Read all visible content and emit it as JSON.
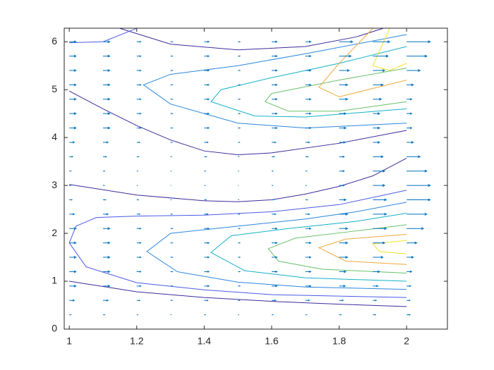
{
  "chart_data": {
    "type": "contour",
    "xlim": [
      0.985,
      2.121
    ],
    "ylim": [
      0,
      6.2832
    ],
    "xticks": [
      1,
      1.2,
      1.4,
      1.6,
      1.8,
      2
    ],
    "yticks": [
      0,
      1,
      2,
      3,
      4,
      5,
      6
    ],
    "contours": [
      {
        "color": "#3d2a9a",
        "x": [
          1,
          1.2,
          1.4,
          1.6,
          1.8,
          2
        ],
        "y": [
          1.0,
          0.78,
          0.66,
          0.58,
          0.52,
          0.47
        ]
      },
      {
        "color": "#3d2a9a",
        "x": [
          1,
          1.2,
          1.4,
          1.5,
          1.6,
          1.7,
          1.8,
          1.9,
          2
        ],
        "y": [
          3.02,
          2.8,
          2.68,
          2.66,
          2.7,
          2.82,
          2.98,
          3.2,
          3.57
        ]
      },
      {
        "color": "#3d2a9a",
        "x": [
          1,
          1.1,
          1.2,
          1.3,
          1.4,
          1.5,
          1.6,
          1.8,
          2
        ],
        "y": [
          4.97,
          4.6,
          4.25,
          3.95,
          3.72,
          3.64,
          3.68,
          3.88,
          4.15
        ]
      },
      {
        "color": "#3d2a9a",
        "x": [
          1.15,
          1.3,
          1.5,
          1.7,
          1.85,
          1.93
        ],
        "y": [
          6.28,
          5.95,
          5.83,
          5.9,
          6.1,
          6.28
        ]
      },
      {
        "color": "#4a5ae6",
        "x": [
          2,
          1.6,
          1.4,
          1.2,
          1.05,
          1,
          1.02,
          1.08,
          1.2,
          1.4,
          1.6,
          1.8,
          2
        ],
        "y": [
          0.66,
          0.72,
          0.82,
          0.97,
          1.3,
          1.8,
          2.15,
          2.33,
          2.36,
          2.38,
          2.45,
          2.6,
          2.9
        ]
      },
      {
        "color": "#4a5ae6",
        "x": [
          1,
          1.1,
          1.2
        ],
        "y": [
          5.98,
          6.0,
          6.28
        ]
      },
      {
        "color": "#2b86dc",
        "x": [
          2,
          1.7,
          1.5,
          1.32,
          1.23,
          1.3,
          1.5,
          1.7,
          1.85,
          2
        ],
        "y": [
          0.83,
          0.88,
          0.98,
          1.2,
          1.62,
          2.0,
          2.15,
          2.3,
          2.45,
          2.65
        ]
      },
      {
        "color": "#2b86dc",
        "x": [
          2,
          1.7,
          1.5,
          1.3,
          1.22,
          1.3,
          1.5,
          1.7,
          2
        ],
        "y": [
          6.15,
          5.75,
          5.5,
          5.32,
          5.1,
          4.7,
          4.3,
          4.2,
          4.3
        ]
      },
      {
        "color": "#14b0c8",
        "x": [
          2,
          1.7,
          1.52,
          1.42,
          1.48,
          1.65,
          1.85,
          2
        ],
        "y": [
          1.0,
          1.07,
          1.22,
          1.6,
          1.95,
          2.1,
          2.25,
          2.42
        ]
      },
      {
        "color": "#14b0c8",
        "x": [
          2,
          1.8,
          1.6,
          1.45,
          1.42,
          1.55,
          1.7,
          2
        ],
        "y": [
          5.9,
          5.55,
          5.25,
          5.0,
          4.75,
          4.45,
          4.43,
          4.6
        ]
      },
      {
        "color": "#68c06a",
        "x": [
          2,
          1.75,
          1.62,
          1.59,
          1.67,
          1.85,
          2
        ],
        "y": [
          1.17,
          1.25,
          1.42,
          1.68,
          1.9,
          2.05,
          2.18
        ]
      },
      {
        "color": "#68c06a",
        "x": [
          2,
          1.8,
          1.6,
          1.58,
          1.65,
          1.8,
          2
        ],
        "y": [
          5.45,
          5.2,
          4.92,
          4.75,
          4.55,
          4.55,
          4.75
        ]
      },
      {
        "color": "#f0a838",
        "x": [
          2,
          1.82,
          1.74,
          1.82,
          2
        ],
        "y": [
          1.35,
          1.42,
          1.7,
          1.88,
          1.98
        ]
      },
      {
        "color": "#f0a838",
        "x": [
          1.9,
          1.8,
          1.74,
          1.8,
          2
        ],
        "y": [
          6.28,
          5.55,
          5.05,
          4.85,
          5.2
        ]
      },
      {
        "color": "#f4e020",
        "x": [
          2,
          1.92,
          1.9,
          2
        ],
        "y": [
          1.57,
          1.62,
          1.78,
          1.85
        ]
      },
      {
        "color": "#f4e020",
        "x": [
          1.95,
          1.9,
          1.95,
          2
        ],
        "y": [
          6.28,
          5.5,
          5.4,
          5.55
        ]
      }
    ],
    "quiver": {
      "color": "#0072bd",
      "x": [
        1,
        1.1,
        1.2,
        1.3,
        1.4,
        1.5,
        1.6,
        1.7,
        1.8,
        1.9,
        2
      ],
      "y": [
        0.3,
        0.6,
        0.9,
        1.2,
        1.5,
        1.8,
        2.1,
        2.4,
        2.7,
        3.0,
        3.3,
        3.6,
        3.9,
        4.2,
        4.5,
        4.8,
        5.1,
        5.4,
        5.7,
        6.0
      ],
      "u": [
        [
          0.005,
          0.005,
          0.003,
          0.002,
          0.004,
          0.002,
          0.004,
          0.004,
          0.006,
          0.008,
          0.01
        ],
        [
          0.015,
          0.015,
          0.009,
          0.005,
          0.011,
          0.005,
          0.012,
          0.012,
          0.012,
          0.01,
          0.01
        ],
        [
          0.02,
          0.02,
          0.012,
          0.006,
          0.014,
          0.006,
          0.016,
          0.016,
          0.018,
          0.015,
          0.012
        ],
        [
          0.02,
          0.02,
          0.012,
          0.006,
          0.014,
          0.006,
          0.016,
          0.016,
          0.02,
          0.02,
          0.015
        ],
        [
          0.02,
          0.02,
          0.012,
          0.006,
          0.014,
          0.006,
          0.016,
          0.016,
          0.025,
          0.03,
          0.02
        ],
        [
          0.02,
          0.02,
          0.012,
          0.006,
          0.014,
          0.006,
          0.016,
          0.016,
          0.025,
          0.035,
          0.03
        ],
        [
          0.02,
          0.02,
          0.012,
          0.006,
          0.014,
          0.006,
          0.016,
          0.016,
          0.025,
          0.04,
          0.05
        ],
        [
          0.015,
          0.015,
          0.009,
          0.005,
          0.011,
          0.005,
          0.012,
          0.012,
          0.025,
          0.04,
          0.06
        ],
        [
          0.008,
          0.008,
          0.005,
          0.002,
          0.006,
          0.002,
          0.006,
          0.006,
          0.02,
          0.04,
          0.07
        ],
        [
          0.004,
          0.004,
          0.002,
          0.001,
          0.003,
          0.001,
          0.003,
          0.003,
          0.015,
          0.035,
          0.07
        ],
        [
          0.005,
          0.005,
          0.003,
          0.002,
          0.004,
          0.002,
          0.004,
          0.004,
          0.015,
          0.035,
          0.06
        ],
        [
          0.01,
          0.01,
          0.006,
          0.003,
          0.007,
          0.003,
          0.008,
          0.008,
          0.015,
          0.03,
          0.04
        ],
        [
          0.015,
          0.015,
          0.009,
          0.005,
          0.011,
          0.005,
          0.012,
          0.012,
          0.018,
          0.02,
          0.02
        ],
        [
          0.02,
          0.02,
          0.012,
          0.006,
          0.014,
          0.006,
          0.016,
          0.016,
          0.02,
          0.02,
          0.015
        ],
        [
          0.02,
          0.02,
          0.012,
          0.006,
          0.014,
          0.006,
          0.016,
          0.016,
          0.02,
          0.02,
          0.015
        ],
        [
          0.02,
          0.02,
          0.012,
          0.006,
          0.014,
          0.006,
          0.016,
          0.016,
          0.025,
          0.025,
          0.015
        ],
        [
          0.02,
          0.02,
          0.012,
          0.006,
          0.014,
          0.006,
          0.016,
          0.016,
          0.025,
          0.03,
          0.02
        ],
        [
          0.02,
          0.02,
          0.012,
          0.006,
          0.014,
          0.006,
          0.016,
          0.016,
          0.03,
          0.035,
          0.04
        ],
        [
          0.02,
          0.02,
          0.012,
          0.006,
          0.014,
          0.006,
          0.016,
          0.016,
          0.035,
          0.045,
          0.06
        ],
        [
          0.02,
          0.02,
          0.012,
          0.006,
          0.014,
          0.006,
          0.016,
          0.016,
          0.04,
          0.05,
          0.07
        ]
      ]
    }
  }
}
